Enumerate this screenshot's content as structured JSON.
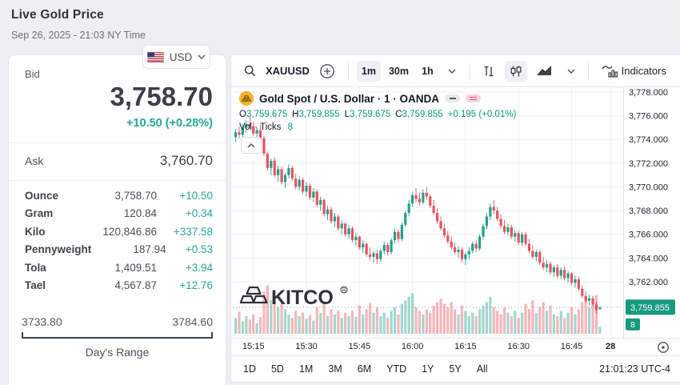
{
  "page": {
    "title": "Live Gold Price",
    "date": "Sep 26, 2025 - 21:03 NY Time"
  },
  "quote_panel": {
    "currency": {
      "label": "USD",
      "flag": "us-flag"
    },
    "bid_label": "Bid",
    "bid": "3,758.70",
    "change": "+10.50 (+0.28%)",
    "ask_label": "Ask",
    "ask": "3,760.70",
    "units": [
      {
        "label": "Ounce",
        "value": "3,758.70",
        "change": "+10.50"
      },
      {
        "label": "Gram",
        "value": "120.84",
        "change": "+0.34"
      },
      {
        "label": "Kilo",
        "value": "120,846.86",
        "change": "+337.58"
      },
      {
        "label": "Pennyweight",
        "value": "187.94",
        "change": "+0.53"
      },
      {
        "label": "Tola",
        "value": "1,409.51",
        "change": "+3.94"
      },
      {
        "label": "Tael",
        "value": "4,567.87",
        "change": "+12.76"
      }
    ],
    "range": {
      "low": "3733.80",
      "high": "3784.60",
      "label": "Day's Range"
    }
  },
  "chart": {
    "toolbar": {
      "symbol": "XAUUSD",
      "intervals": [
        "1m",
        "30m",
        "1h"
      ],
      "active_interval": "1m",
      "indicators_label": "Indicators"
    },
    "legend": {
      "title": "Gold Spot / U.S. Dollar · 1 · OANDA",
      "o_key": "O",
      "o": "3,759.675",
      "h_key": "H",
      "h": "3,759.855",
      "l_key": "L",
      "l": "3,759.675",
      "c_key": "C",
      "c": "3,759.855",
      "change": "+0.195 (+0.01%)",
      "vol_label": "Vol · Ticks",
      "vol_value": "8"
    },
    "watermark": "KITCO",
    "price_tag": "3,759.855",
    "vol_tag": "8",
    "clock": "21:01:23 UTC-4",
    "range_buttons": [
      "1D",
      "5D",
      "1M",
      "3M",
      "6M",
      "YTD",
      "1Y",
      "5Y",
      "All"
    ]
  },
  "chart_data": {
    "type": "candlestick+volume",
    "symbol": "XAUUSD",
    "interval": "1m",
    "exchange": "OANDA",
    "last_price": 3759.855,
    "y_ticks": [
      {
        "v": 3778,
        "label": "3,778.000"
      },
      {
        "v": 3776,
        "label": "3,776.000"
      },
      {
        "v": 3774,
        "label": "3,774.000"
      },
      {
        "v": 3772,
        "label": "3,772.000"
      },
      {
        "v": 3770,
        "label": "3,770.000"
      },
      {
        "v": 3768,
        "label": "3,768.000"
      },
      {
        "v": 3766,
        "label": "3,766.000"
      },
      {
        "v": 3764,
        "label": "3,764.000"
      },
      {
        "v": 3762,
        "label": "3,762.000"
      }
    ],
    "x_ticks": [
      {
        "i": 5,
        "label": "15:15"
      },
      {
        "i": 20,
        "label": "15:30"
      },
      {
        "i": 35,
        "label": "15:45"
      },
      {
        "i": 50,
        "label": "16:00"
      },
      {
        "i": 65,
        "label": "16:15"
      },
      {
        "i": 80,
        "label": "16:30"
      },
      {
        "i": 95,
        "label": "16:45"
      },
      {
        "i": 106,
        "label": "28",
        "bold": true
      }
    ],
    "candles": [
      [
        3774.2,
        3774.9,
        3773.8,
        3774.6
      ],
      [
        3774.6,
        3775.1,
        3774.1,
        3774.4
      ],
      [
        3774.4,
        3775.3,
        3774.2,
        3775.0
      ],
      [
        3775.0,
        3775.6,
        3774.6,
        3775.3
      ],
      [
        3775.3,
        3776.0,
        3774.9,
        3775.1
      ],
      [
        3775.1,
        3775.5,
        3774.3,
        3774.5
      ],
      [
        3774.5,
        3775.0,
        3773.9,
        3774.8
      ],
      [
        3774.8,
        3775.2,
        3774.0,
        3774.1
      ],
      [
        3774.1,
        3774.3,
        3772.6,
        3772.8
      ],
      [
        3772.8,
        3773.0,
        3771.4,
        3771.6
      ],
      [
        3771.6,
        3772.4,
        3771.0,
        3772.2
      ],
      [
        3772.2,
        3772.5,
        3770.8,
        3771.0
      ],
      [
        3771.0,
        3771.8,
        3770.4,
        3771.5
      ],
      [
        3771.5,
        3771.7,
        3770.2,
        3770.4
      ],
      [
        3770.4,
        3771.2,
        3769.9,
        3771.0
      ],
      [
        3771.0,
        3771.9,
        3770.7,
        3771.6
      ],
      [
        3771.6,
        3771.8,
        3770.5,
        3770.7
      ],
      [
        3770.7,
        3771.1,
        3769.8,
        3770.0
      ],
      [
        3770.0,
        3770.9,
        3769.7,
        3770.6
      ],
      [
        3770.6,
        3770.8,
        3769.4,
        3769.6
      ],
      [
        3769.6,
        3770.4,
        3769.2,
        3770.1
      ],
      [
        3770.1,
        3770.3,
        3768.9,
        3769.1
      ],
      [
        3769.1,
        3769.9,
        3768.7,
        3769.6
      ],
      [
        3769.6,
        3769.8,
        3768.3,
        3768.5
      ],
      [
        3768.5,
        3769.2,
        3768.0,
        3768.9
      ],
      [
        3768.9,
        3769.0,
        3767.5,
        3767.7
      ],
      [
        3767.7,
        3768.4,
        3767.2,
        3768.1
      ],
      [
        3768.1,
        3768.3,
        3766.9,
        3767.1
      ],
      [
        3767.1,
        3767.8,
        3766.6,
        3767.5
      ],
      [
        3767.5,
        3767.7,
        3766.3,
        3766.5
      ],
      [
        3766.5,
        3767.2,
        3766.0,
        3766.9
      ],
      [
        3766.9,
        3767.0,
        3765.8,
        3766.0
      ],
      [
        3766.0,
        3766.8,
        3765.6,
        3766.5
      ],
      [
        3766.5,
        3766.7,
        3765.3,
        3765.5
      ],
      [
        3765.5,
        3766.1,
        3765.0,
        3765.8
      ],
      [
        3765.8,
        3765.9,
        3764.7,
        3764.9
      ],
      [
        3764.9,
        3765.5,
        3764.4,
        3765.2
      ],
      [
        3765.2,
        3765.3,
        3764.1,
        3764.3
      ],
      [
        3764.3,
        3764.9,
        3763.8,
        3764.1
      ],
      [
        3764.1,
        3764.6,
        3763.6,
        3764.4
      ],
      [
        3764.4,
        3764.7,
        3763.5,
        3763.9
      ],
      [
        3763.9,
        3764.8,
        3763.7,
        3764.6
      ],
      [
        3764.6,
        3765.4,
        3764.3,
        3765.1
      ],
      [
        3765.1,
        3765.3,
        3764.2,
        3764.5
      ],
      [
        3764.5,
        3765.7,
        3764.3,
        3765.5
      ],
      [
        3765.5,
        3766.5,
        3765.2,
        3766.2
      ],
      [
        3766.2,
        3766.4,
        3765.3,
        3765.6
      ],
      [
        3765.6,
        3767.0,
        3765.4,
        3766.8
      ],
      [
        3766.8,
        3768.0,
        3766.6,
        3767.8
      ],
      [
        3767.8,
        3768.9,
        3767.5,
        3768.6
      ],
      [
        3768.6,
        3769.6,
        3768.3,
        3769.3
      ],
      [
        3769.3,
        3769.9,
        3768.7,
        3769.0
      ],
      [
        3769.0,
        3769.5,
        3768.4,
        3768.7
      ],
      [
        3768.7,
        3769.8,
        3768.5,
        3769.5
      ],
      [
        3769.5,
        3770.0,
        3768.9,
        3769.2
      ],
      [
        3769.2,
        3769.4,
        3768.2,
        3768.4
      ],
      [
        3768.4,
        3768.9,
        3767.6,
        3767.8
      ],
      [
        3767.8,
        3768.2,
        3766.9,
        3767.1
      ],
      [
        3767.1,
        3767.5,
        3766.3,
        3766.5
      ],
      [
        3766.5,
        3766.9,
        3765.7,
        3765.9
      ],
      [
        3765.9,
        3766.3,
        3765.2,
        3765.4
      ],
      [
        3765.4,
        3765.8,
        3764.7,
        3764.9
      ],
      [
        3764.9,
        3765.3,
        3764.3,
        3764.5
      ],
      [
        3764.5,
        3765.0,
        3764.0,
        3764.7
      ],
      [
        3764.7,
        3764.9,
        3763.6,
        3763.9
      ],
      [
        3763.9,
        3764.5,
        3763.4,
        3764.3
      ],
      [
        3764.3,
        3764.9,
        3763.9,
        3764.6
      ],
      [
        3764.6,
        3765.4,
        3764.4,
        3765.2
      ],
      [
        3765.2,
        3765.5,
        3764.5,
        3764.8
      ],
      [
        3764.8,
        3766.0,
        3764.6,
        3765.8
      ],
      [
        3765.8,
        3766.9,
        3765.6,
        3766.7
      ],
      [
        3766.7,
        3767.8,
        3766.4,
        3767.5
      ],
      [
        3767.5,
        3768.6,
        3767.2,
        3768.3
      ],
      [
        3768.3,
        3768.9,
        3767.7,
        3768.0
      ],
      [
        3768.0,
        3768.3,
        3767.1,
        3767.3
      ],
      [
        3767.3,
        3767.7,
        3766.5,
        3766.7
      ],
      [
        3766.7,
        3767.2,
        3766.0,
        3766.2
      ],
      [
        3766.2,
        3766.9,
        3765.9,
        3766.6
      ],
      [
        3766.6,
        3766.8,
        3765.6,
        3765.8
      ],
      [
        3765.8,
        3766.4,
        3765.4,
        3766.1
      ],
      [
        3766.1,
        3766.3,
        3765.1,
        3765.3
      ],
      [
        3765.3,
        3766.2,
        3765.0,
        3766.0
      ],
      [
        3766.0,
        3766.2,
        3765.0,
        3765.2
      ],
      [
        3765.2,
        3765.6,
        3764.4,
        3764.6
      ],
      [
        3764.6,
        3765.1,
        3763.9,
        3764.1
      ],
      [
        3764.1,
        3764.7,
        3763.7,
        3764.5
      ],
      [
        3764.5,
        3764.7,
        3763.4,
        3763.6
      ],
      [
        3763.6,
        3764.1,
        3763.0,
        3763.2
      ],
      [
        3763.2,
        3763.8,
        3762.8,
        3763.5
      ],
      [
        3763.5,
        3763.7,
        3762.6,
        3762.8
      ],
      [
        3762.8,
        3763.4,
        3762.4,
        3763.2
      ],
      [
        3763.2,
        3763.5,
        3762.3,
        3762.5
      ],
      [
        3762.5,
        3763.2,
        3762.2,
        3763.0
      ],
      [
        3763.0,
        3763.3,
        3762.1,
        3762.3
      ],
      [
        3762.3,
        3762.9,
        3761.9,
        3762.7
      ],
      [
        3762.7,
        3762.8,
        3761.7,
        3761.9
      ],
      [
        3761.9,
        3762.5,
        3761.5,
        3762.2
      ],
      [
        3762.2,
        3762.4,
        3761.2,
        3761.4
      ],
      [
        3761.4,
        3761.7,
        3760.6,
        3760.8
      ],
      [
        3760.8,
        3761.2,
        3760.2,
        3760.4
      ],
      [
        3760.4,
        3760.9,
        3760.0,
        3760.6
      ],
      [
        3760.6,
        3760.8,
        3759.9,
        3760.1
      ],
      [
        3760.1,
        3760.3,
        3759.3,
        3759.6
      ],
      [
        3759.675,
        3759.855,
        3759.675,
        3759.855
      ]
    ],
    "volumes": [
      18,
      25,
      14,
      20,
      16,
      22,
      12,
      19,
      48,
      55,
      38,
      42,
      30,
      35,
      28,
      22,
      18,
      26,
      20,
      24,
      17,
      21,
      15,
      30,
      24,
      34,
      20,
      28,
      22,
      26,
      18,
      24,
      20,
      26,
      19,
      32,
      22,
      28,
      35,
      24,
      30,
      20,
      24,
      18,
      26,
      30,
      22,
      34,
      38,
      42,
      46,
      30,
      26,
      22,
      28,
      24,
      32,
      36,
      40,
      34,
      30,
      36,
      28,
      22,
      32,
      26,
      20,
      24,
      20,
      28,
      32,
      36,
      42,
      30,
      26,
      22,
      30,
      24,
      20,
      26,
      18,
      24,
      34,
      28,
      38,
      24,
      30,
      36,
      26,
      32,
      22,
      20,
      26,
      18,
      24,
      30,
      22,
      28,
      36,
      42,
      30,
      38,
      44,
      8
    ]
  },
  "colors": {
    "up": "#1fa189",
    "down": "#e8525f",
    "ohlc_text": "#089981",
    "left_change": "#26a69a",
    "tag_bg": "#169a80",
    "grid": "#f0f2f5",
    "axis_sep": "#e0e3e8",
    "axis_text": "#1b1f27"
  }
}
